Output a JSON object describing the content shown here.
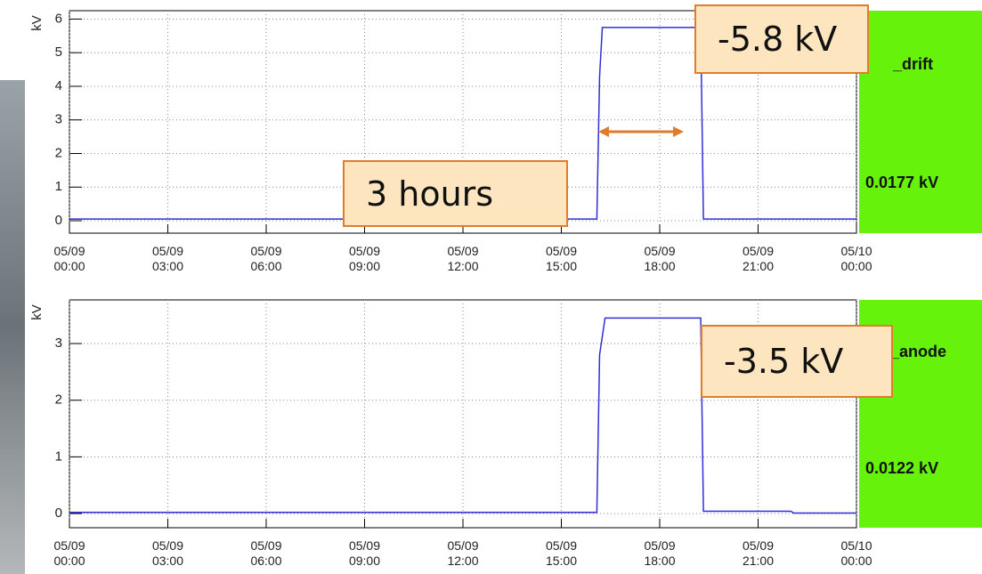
{
  "chart_data": [
    {
      "type": "line",
      "y_label": "kV",
      "x": [
        "05/09 00:00",
        "05/09 16:05",
        "05/09 16:10",
        "05/09 16:15",
        "05/09 19:15",
        "05/09 19:20",
        "05/10 00:00"
      ],
      "series": [
        {
          "name": "_drift",
          "color": "#2f2fd8",
          "values": [
            0.05,
            0.05,
            4.3,
            5.75,
            5.75,
            0.05,
            0.05
          ],
          "stat_label": "0.0177 kV"
        }
      ],
      "xlim": [
        "05/09 00:00",
        "05/10 00:00"
      ],
      "xticks": [
        "05/09 00:00",
        "05/09 03:00",
        "05/09 06:00",
        "05/09 09:00",
        "05/09 12:00",
        "05/09 15:00",
        "05/09 18:00",
        "05/09 21:00",
        "05/10 00:00"
      ],
      "ylim": [
        -0.37,
        6.25
      ],
      "yticks": [
        0,
        1,
        2,
        3,
        4,
        5,
        6
      ],
      "grid": true,
      "annotations": [
        "-5.8 kV",
        "3 hours"
      ]
    },
    {
      "type": "line",
      "y_label": "kV",
      "x": [
        "05/09 00:00",
        "05/09 16:05",
        "05/09 16:10",
        "05/09 16:20",
        "05/09 19:15",
        "05/09 19:20",
        "05/09 22:00",
        "05/09 22:05",
        "05/10 00:00"
      ],
      "series": [
        {
          "name": "_anode",
          "color": "#2f2fd8",
          "values": [
            0.02,
            0.02,
            2.8,
            3.45,
            3.45,
            0.04,
            0.04,
            0.01,
            0.01
          ],
          "stat_label": "0.0122 kV"
        }
      ],
      "xlim": [
        "05/09 00:00",
        "05/10 00:00"
      ],
      "xticks": [
        "05/09 00:00",
        "05/09 03:00",
        "05/09 06:00",
        "05/09 09:00",
        "05/09 12:00",
        "05/09 15:00",
        "05/09 18:00",
        "05/09 21:00",
        "05/10 00:00"
      ],
      "ylim": [
        -0.25,
        3.77
      ],
      "yticks": [
        0,
        1,
        2,
        3
      ],
      "grid": true,
      "annotations": [
        "-3.5 kV"
      ]
    }
  ]
}
